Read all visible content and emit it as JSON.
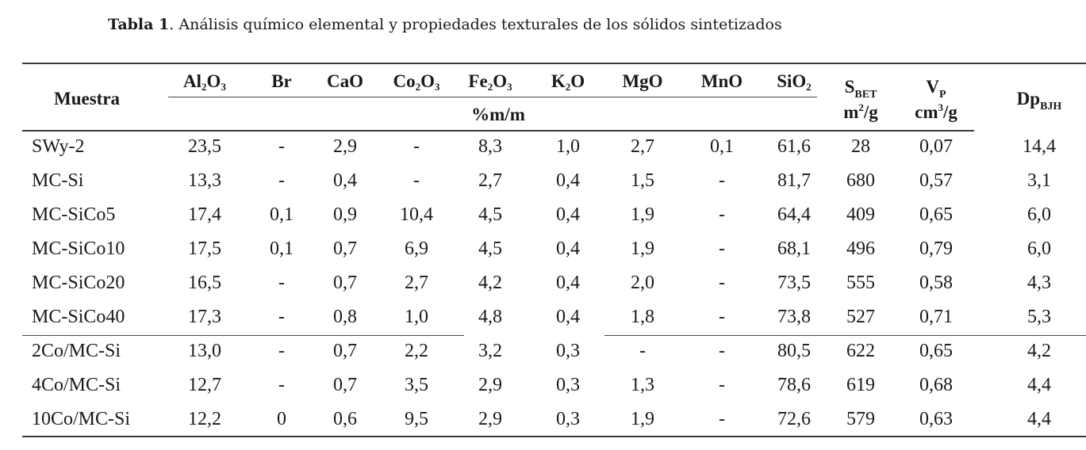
{
  "caption": {
    "label": "Tabla 1",
    "text": ". Análisis químico elemental y propiedades texturales de los sólidos sintetizados"
  },
  "header": {
    "sample": "Muestra",
    "unit_group": "%m/m",
    "columns": [
      {
        "key": "Al2O3",
        "base": "Al",
        "sub1": "2",
        "mid": "O",
        "sub2": "3"
      },
      {
        "key": "Br",
        "base": "Br"
      },
      {
        "key": "CaO",
        "base": "CaO"
      },
      {
        "key": "Co2O3",
        "base": "Co",
        "sub1": "2",
        "mid": "O",
        "sub2": "3"
      },
      {
        "key": "Fe2O3",
        "base": "Fe",
        "sub1": "2",
        "mid": "O",
        "sub2": "3"
      },
      {
        "key": "K2O",
        "base": "K",
        "sub1": "2",
        "mid": "O"
      },
      {
        "key": "MgO",
        "base": "MgO"
      },
      {
        "key": "MnO",
        "base": "MnO"
      },
      {
        "key": "SiO2",
        "base": "SiO",
        "sub1": "2"
      }
    ],
    "sbet": {
      "base": "S",
      "sub": "BET",
      "unit_base": "m",
      "unit_sup": "2",
      "unit_tail": "/g"
    },
    "vp": {
      "base": "V",
      "sub": "P",
      "unit_base": "cm",
      "unit_sup": "3",
      "unit_tail": "/g"
    },
    "dp": {
      "base": "Dp",
      "sub": "BJH"
    }
  },
  "rows": [
    {
      "sample": "SWy-2",
      "values": [
        "23,5",
        "-",
        "2,9",
        "-",
        "8,3",
        "1,0",
        "2,7",
        "0,1",
        "61,6",
        "28",
        "0,07",
        "14,4"
      ]
    },
    {
      "sample": "MC-Si",
      "values": [
        "13,3",
        "-",
        "0,4",
        "-",
        "2,7",
        "0,4",
        "1,5",
        "-",
        "81,7",
        "680",
        "0,57",
        "3,1"
      ]
    },
    {
      "sample": "MC-SiCo5",
      "values": [
        "17,4",
        "0,1",
        "0,9",
        "10,4",
        "4,5",
        "0,4",
        "1,9",
        "-",
        "64,4",
        "409",
        "0,65",
        "6,0"
      ]
    },
    {
      "sample": "MC-SiCo10",
      "values": [
        "17,5",
        "0,1",
        "0,7",
        "6,9",
        "4,5",
        "0,4",
        "1,9",
        "-",
        "68,1",
        "496",
        "0,79",
        "6,0"
      ]
    },
    {
      "sample": "MC-SiCo20",
      "values": [
        "16,5",
        "-",
        "0,7",
        "2,7",
        "4,2",
        "0,4",
        "2,0",
        "-",
        "73,5",
        "555",
        "0,58",
        "4,3"
      ]
    },
    {
      "sample": "MC-SiCo40",
      "values": [
        "17,3",
        "-",
        "0,8",
        "1,0",
        "4,8",
        "0,4",
        "1,8",
        "-",
        "73,8",
        "527",
        "0,71",
        "5,3"
      ]
    },
    {
      "sample": "2Co/MC-Si",
      "values": [
        "13,0",
        "-",
        "0,7",
        "2,2",
        "3,2",
        "0,3",
        "-",
        "-",
        "80,5",
        "622",
        "0,65",
        "4,2"
      ]
    },
    {
      "sample": "4Co/MC-Si",
      "values": [
        "12,7",
        "-",
        "0,7",
        "3,5",
        "2,9",
        "0,3",
        "1,3",
        "-",
        "78,6",
        "619",
        "0,68",
        "4,4"
      ]
    },
    {
      "sample": "10Co/MC-Si",
      "values": [
        "12,2",
        "0",
        "0,6",
        "9,5",
        "2,9",
        "0,3",
        "1,9",
        "-",
        "72,6",
        "579",
        "0,63",
        "4,4"
      ]
    }
  ]
}
